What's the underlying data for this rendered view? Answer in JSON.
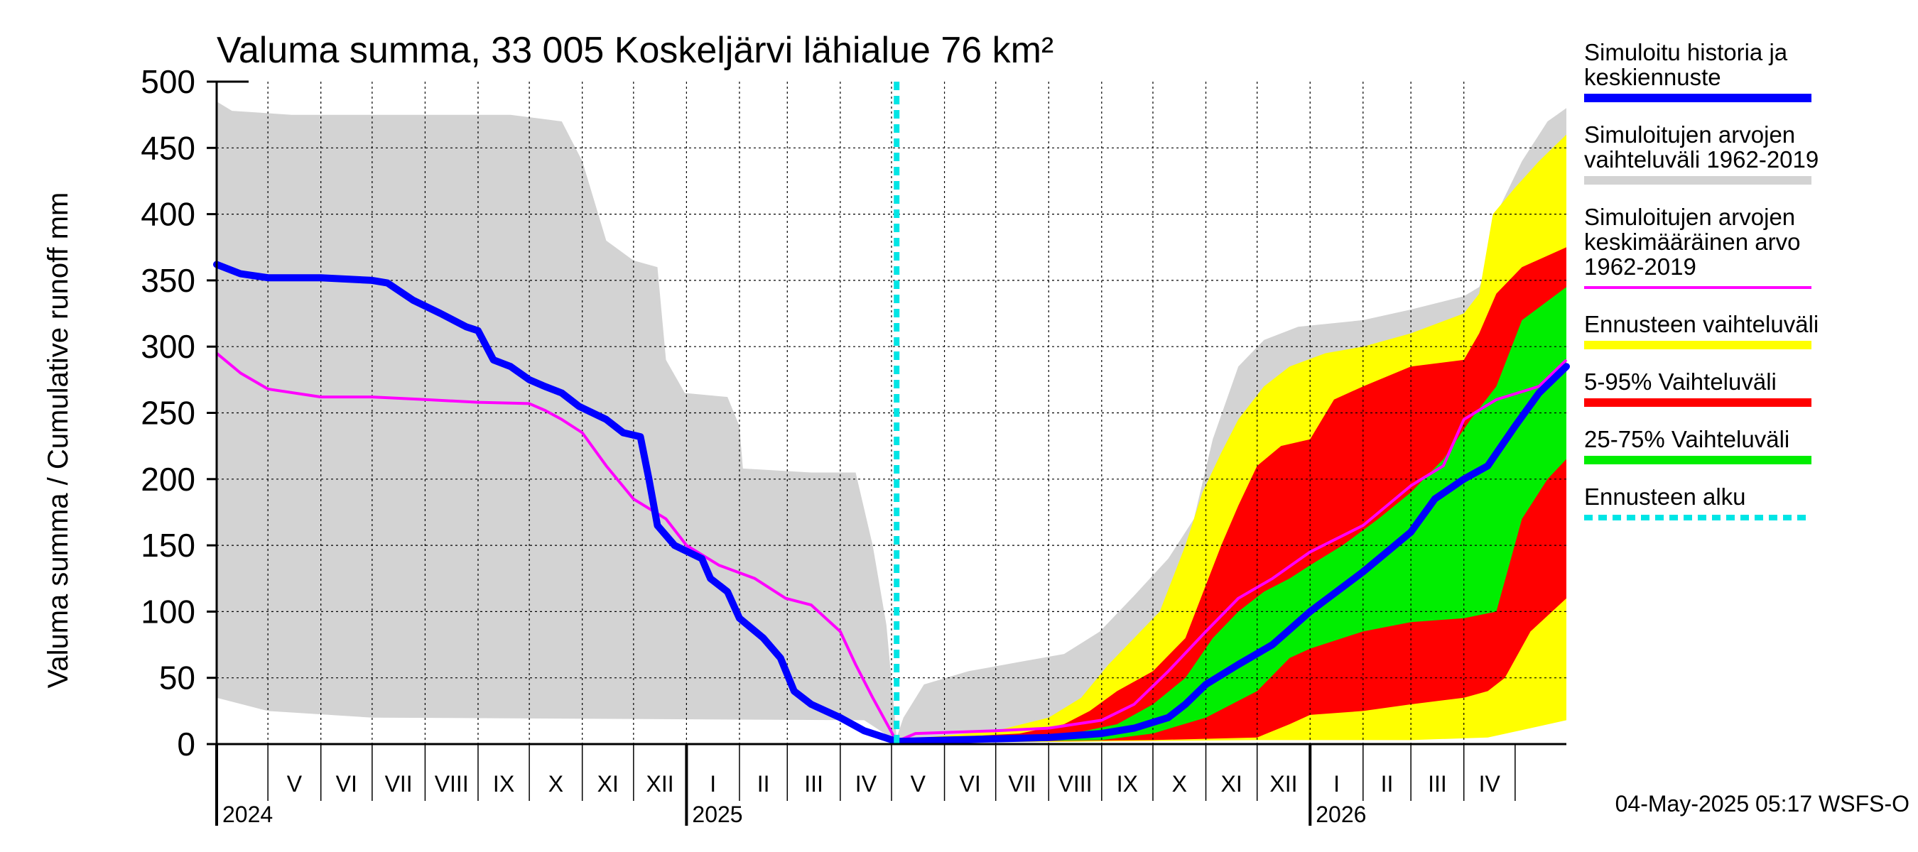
{
  "chart_data": {
    "type": "area",
    "title": "Valuma summa, 33 005 Koskeljärvi lähialue 76 km²",
    "ylabel": "Valuma summa / Cumulative runoff    mm",
    "ylim": [
      0,
      500
    ],
    "yticks": [
      0,
      50,
      100,
      150,
      200,
      250,
      300,
      350,
      400,
      450,
      500
    ],
    "xlim": [
      "2024-04-01",
      "2026-05-31"
    ],
    "forecast_start": "2025-05-04",
    "months": [
      {
        "label": "V",
        "start": "2024-05-01",
        "end": "2024-06-01"
      },
      {
        "label": "VI",
        "start": "2024-06-01",
        "end": "2024-07-01"
      },
      {
        "label": "VII",
        "start": "2024-07-01",
        "end": "2024-08-01"
      },
      {
        "label": "VIII",
        "start": "2024-08-01",
        "end": "2024-09-01"
      },
      {
        "label": "IX",
        "start": "2024-09-01",
        "end": "2024-10-01"
      },
      {
        "label": "X",
        "start": "2024-10-01",
        "end": "2024-11-01"
      },
      {
        "label": "XI",
        "start": "2024-11-01",
        "end": "2024-12-01"
      },
      {
        "label": "XII",
        "start": "2024-12-01",
        "end": "2025-01-01"
      },
      {
        "label": "I",
        "start": "2025-01-01",
        "end": "2025-02-01"
      },
      {
        "label": "II",
        "start": "2025-02-01",
        "end": "2025-03-01"
      },
      {
        "label": "III",
        "start": "2025-03-01",
        "end": "2025-04-01"
      },
      {
        "label": "IV",
        "start": "2025-04-01",
        "end": "2025-05-01"
      },
      {
        "label": "V",
        "start": "2025-05-01",
        "end": "2025-06-01"
      },
      {
        "label": "VI",
        "start": "2025-06-01",
        "end": "2025-07-01"
      },
      {
        "label": "VII",
        "start": "2025-07-01",
        "end": "2025-08-01"
      },
      {
        "label": "VIII",
        "start": "2025-08-01",
        "end": "2025-09-01"
      },
      {
        "label": "IX",
        "start": "2025-09-01",
        "end": "2025-10-01"
      },
      {
        "label": "X",
        "start": "2025-10-01",
        "end": "2025-11-01"
      },
      {
        "label": "XI",
        "start": "2025-11-01",
        "end": "2025-12-01"
      },
      {
        "label": "XII",
        "start": "2025-12-01",
        "end": "2026-01-01"
      },
      {
        "label": "I",
        "start": "2026-01-01",
        "end": "2026-02-01"
      },
      {
        "label": "II",
        "start": "2026-02-01",
        "end": "2026-03-01"
      },
      {
        "label": "III",
        "start": "2026-03-01",
        "end": "2026-04-01"
      },
      {
        "label": "IV",
        "start": "2026-04-01",
        "end": "2026-05-01"
      }
    ],
    "years": [
      {
        "label": "2024",
        "date": "2024-04-01"
      },
      {
        "label": "2025",
        "date": "2025-01-01"
      },
      {
        "label": "2026",
        "date": "2026-01-01"
      }
    ],
    "hist_range": {
      "name": "Simuloitujen arvojen vaihteluväli 1962-2019",
      "color": "#d3d3d3",
      "upper": [
        [
          "2024-04-01",
          485
        ],
        [
          "2024-04-10",
          478
        ],
        [
          "2024-05-15",
          475
        ],
        [
          "2024-09-20",
          475
        ],
        [
          "2024-10-20",
          470
        ],
        [
          "2024-11-01",
          440
        ],
        [
          "2024-11-15",
          380
        ],
        [
          "2024-12-01",
          365
        ],
        [
          "2024-12-15",
          360
        ],
        [
          "2024-12-20",
          290
        ],
        [
          "2024-12-31",
          265
        ],
        [
          "2025-01-25",
          262
        ],
        [
          "2025-02-01",
          240
        ],
        [
          "2025-02-03",
          208
        ],
        [
          "2025-03-15",
          205
        ],
        [
          "2025-04-10",
          205
        ],
        [
          "2025-04-20",
          150
        ],
        [
          "2025-04-28",
          90
        ],
        [
          "2025-05-04",
          5
        ],
        [
          "2025-05-08",
          20
        ],
        [
          "2025-05-20",
          45
        ],
        [
          "2025-06-15",
          55
        ],
        [
          "2025-07-15",
          62
        ],
        [
          "2025-08-10",
          68
        ],
        [
          "2025-08-31",
          85
        ],
        [
          "2025-09-20",
          112
        ],
        [
          "2025-10-10",
          140
        ],
        [
          "2025-10-25",
          170
        ],
        [
          "2025-11-05",
          230
        ],
        [
          "2025-11-20",
          285
        ],
        [
          "2025-12-05",
          305
        ],
        [
          "2025-12-25",
          315
        ],
        [
          "2026-02-01",
          320
        ],
        [
          "2026-03-01",
          328
        ],
        [
          "2026-04-01",
          338
        ],
        [
          "2026-04-10",
          345
        ],
        [
          "2026-04-15",
          360
        ],
        [
          "2026-04-20",
          400
        ],
        [
          "2026-05-05",
          440
        ],
        [
          "2026-05-20",
          470
        ],
        [
          "2026-05-31",
          480
        ]
      ],
      "lower": [
        [
          "2024-04-01",
          35
        ],
        [
          "2024-05-01",
          25
        ],
        [
          "2024-07-01",
          20
        ],
        [
          "2025-04-15",
          18
        ],
        [
          "2025-05-04",
          2
        ],
        [
          "2025-07-01",
          1
        ],
        [
          "2025-09-01",
          2
        ],
        [
          "2025-12-01",
          5
        ],
        [
          "2026-02-01",
          8
        ],
        [
          "2026-04-10",
          10
        ],
        [
          "2026-05-10",
          15
        ],
        [
          "2026-05-31",
          25
        ]
      ]
    },
    "fc_range": {
      "name": "Ennusteen vaihteluväli",
      "color": "#ffff00",
      "upper": [
        [
          "2025-05-04",
          3
        ],
        [
          "2025-07-01",
          10
        ],
        [
          "2025-08-01",
          20
        ],
        [
          "2025-08-20",
          35
        ],
        [
          "2025-09-05",
          60
        ],
        [
          "2025-09-20",
          80
        ],
        [
          "2025-10-05",
          100
        ],
        [
          "2025-10-20",
          150
        ],
        [
          "2025-10-30",
          190
        ],
        [
          "2025-11-10",
          220
        ],
        [
          "2025-11-20",
          245
        ],
        [
          "2025-12-05",
          270
        ],
        [
          "2025-12-20",
          285
        ],
        [
          "2026-01-10",
          295
        ],
        [
          "2026-02-01",
          300
        ],
        [
          "2026-03-01",
          310
        ],
        [
          "2026-04-01",
          325
        ],
        [
          "2026-04-10",
          340
        ],
        [
          "2026-04-18",
          400
        ],
        [
          "2026-05-01",
          420
        ],
        [
          "2026-05-15",
          440
        ],
        [
          "2026-05-31",
          460
        ]
      ],
      "lower": [
        [
          "2025-05-04",
          1
        ],
        [
          "2025-09-01",
          2
        ],
        [
          "2025-12-01",
          3
        ],
        [
          "2026-03-01",
          3
        ],
        [
          "2026-04-15",
          5
        ],
        [
          "2026-05-10",
          12
        ],
        [
          "2026-05-31",
          18
        ]
      ]
    },
    "p5_95": {
      "name": "5-95% Vaihteluväli",
      "color": "#ff0000",
      "upper": [
        [
          "2025-05-04",
          3
        ],
        [
          "2025-07-15",
          8
        ],
        [
          "2025-08-10",
          15
        ],
        [
          "2025-08-25",
          25
        ],
        [
          "2025-09-10",
          40
        ],
        [
          "2025-10-01",
          55
        ],
        [
          "2025-10-20",
          80
        ],
        [
          "2025-11-01",
          120
        ],
        [
          "2025-11-10",
          150
        ],
        [
          "2025-11-20",
          180
        ],
        [
          "2025-12-01",
          210
        ],
        [
          "2025-12-15",
          225
        ],
        [
          "2026-01-01",
          230
        ],
        [
          "2026-01-15",
          260
        ],
        [
          "2026-02-01",
          270
        ],
        [
          "2026-03-01",
          285
        ],
        [
          "2026-04-01",
          290
        ],
        [
          "2026-04-10",
          310
        ],
        [
          "2026-04-20",
          340
        ],
        [
          "2026-05-05",
          360
        ],
        [
          "2026-05-31",
          375
        ]
      ],
      "lower": [
        [
          "2025-05-04",
          1
        ],
        [
          "2025-10-01",
          3
        ],
        [
          "2025-12-01",
          5
        ],
        [
          "2025-12-20",
          15
        ],
        [
          "2026-01-01",
          22
        ],
        [
          "2026-02-01",
          25
        ],
        [
          "2026-03-01",
          30
        ],
        [
          "2026-04-01",
          35
        ],
        [
          "2026-04-15",
          40
        ],
        [
          "2026-04-25",
          50
        ],
        [
          "2026-05-10",
          85
        ],
        [
          "2026-05-31",
          110
        ]
      ]
    },
    "p25_75": {
      "name": "25-75% Vaihteluväli",
      "color": "#00ee00",
      "upper": [
        [
          "2025-05-04",
          3
        ],
        [
          "2025-08-15",
          8
        ],
        [
          "2025-09-10",
          15
        ],
        [
          "2025-10-01",
          30
        ],
        [
          "2025-10-20",
          50
        ],
        [
          "2025-11-05",
          80
        ],
        [
          "2025-11-20",
          100
        ],
        [
          "2025-12-05",
          115
        ],
        [
          "2025-12-20",
          125
        ],
        [
          "2026-01-01",
          135
        ],
        [
          "2026-01-20",
          150
        ],
        [
          "2026-02-10",
          170
        ],
        [
          "2026-03-01",
          190
        ],
        [
          "2026-03-20",
          215
        ],
        [
          "2026-04-05",
          245
        ],
        [
          "2026-04-20",
          270
        ],
        [
          "2026-05-05",
          320
        ],
        [
          "2026-05-31",
          345
        ]
      ],
      "lower": [
        [
          "2025-05-04",
          1
        ],
        [
          "2025-09-01",
          3
        ],
        [
          "2025-10-01",
          8
        ],
        [
          "2025-11-01",
          20
        ],
        [
          "2025-12-01",
          40
        ],
        [
          "2025-12-20",
          65
        ],
        [
          "2026-01-01",
          72
        ],
        [
          "2026-02-01",
          85
        ],
        [
          "2026-03-01",
          92
        ],
        [
          "2026-04-01",
          95
        ],
        [
          "2026-04-20",
          100
        ],
        [
          "2026-05-05",
          170
        ],
        [
          "2026-05-20",
          200
        ],
        [
          "2026-05-31",
          215
        ]
      ]
    },
    "mean_line": {
      "name": "Simuloitujen arvojen keskimääräinen arvo 1962-2019",
      "color": "#ff00ff",
      "points": [
        [
          "2024-04-01",
          295
        ],
        [
          "2024-04-15",
          280
        ],
        [
          "2024-05-01",
          268
        ],
        [
          "2024-06-01",
          262
        ],
        [
          "2024-07-01",
          262
        ],
        [
          "2024-08-01",
          260
        ],
        [
          "2024-09-01",
          258
        ],
        [
          "2024-10-01",
          257
        ],
        [
          "2024-10-10",
          252
        ],
        [
          "2024-10-20",
          245
        ],
        [
          "2024-11-01",
          235
        ],
        [
          "2024-11-15",
          210
        ],
        [
          "2024-12-01",
          185
        ],
        [
          "2024-12-20",
          170
        ],
        [
          "2025-01-01",
          150
        ],
        [
          "2025-01-20",
          135
        ],
        [
          "2025-02-10",
          125
        ],
        [
          "2025-02-28",
          110
        ],
        [
          "2025-03-15",
          105
        ],
        [
          "2025-04-01",
          85
        ],
        [
          "2025-04-10",
          60
        ],
        [
          "2025-04-20",
          35
        ],
        [
          "2025-05-04",
          2
        ],
        [
          "2025-05-15",
          8
        ],
        [
          "2025-07-01",
          10
        ],
        [
          "2025-08-01",
          12
        ],
        [
          "2025-09-01",
          18
        ],
        [
          "2025-09-20",
          30
        ],
        [
          "2025-10-10",
          55
        ],
        [
          "2025-11-01",
          85
        ],
        [
          "2025-11-20",
          110
        ],
        [
          "2025-12-10",
          125
        ],
        [
          "2026-01-01",
          145
        ],
        [
          "2026-02-01",
          165
        ],
        [
          "2026-03-01",
          195
        ],
        [
          "2026-03-20",
          210
        ],
        [
          "2026-04-01",
          245
        ],
        [
          "2026-04-20",
          260
        ],
        [
          "2026-05-15",
          270
        ],
        [
          "2026-05-31",
          290
        ]
      ]
    },
    "sim_line": {
      "name": "Simuloitu historia ja keskiennuste",
      "color": "#0000ff",
      "points": [
        [
          "2024-04-01",
          362
        ],
        [
          "2024-04-15",
          355
        ],
        [
          "2024-05-01",
          352
        ],
        [
          "2024-06-01",
          352
        ],
        [
          "2024-07-01",
          350
        ],
        [
          "2024-07-10",
          348
        ],
        [
          "2024-07-25",
          335
        ],
        [
          "2024-08-10",
          325
        ],
        [
          "2024-08-25",
          315
        ],
        [
          "2024-09-01",
          312
        ],
        [
          "2024-09-10",
          290
        ],
        [
          "2024-09-20",
          285
        ],
        [
          "2024-10-01",
          275
        ],
        [
          "2024-10-10",
          270
        ],
        [
          "2024-10-20",
          265
        ],
        [
          "2024-10-30",
          255
        ],
        [
          "2024-11-15",
          245
        ],
        [
          "2024-11-25",
          235
        ],
        [
          "2024-12-05",
          232
        ],
        [
          "2024-12-10",
          200
        ],
        [
          "2024-12-15",
          165
        ],
        [
          "2024-12-25",
          150
        ],
        [
          "2025-01-10",
          140
        ],
        [
          "2025-01-15",
          125
        ],
        [
          "2025-01-25",
          115
        ],
        [
          "2025-02-01",
          95
        ],
        [
          "2025-02-15",
          80
        ],
        [
          "2025-02-25",
          65
        ],
        [
          "2025-03-05",
          40
        ],
        [
          "2025-03-15",
          30
        ],
        [
          "2025-04-01",
          20
        ],
        [
          "2025-04-15",
          10
        ],
        [
          "2025-05-04",
          2
        ],
        [
          "2025-06-01",
          3
        ],
        [
          "2025-08-01",
          5
        ],
        [
          "2025-09-01",
          8
        ],
        [
          "2025-09-20",
          12
        ],
        [
          "2025-10-10",
          20
        ],
        [
          "2025-10-20",
          30
        ],
        [
          "2025-11-01",
          45
        ],
        [
          "2025-11-20",
          60
        ],
        [
          "2025-12-10",
          75
        ],
        [
          "2026-01-01",
          100
        ],
        [
          "2026-02-01",
          130
        ],
        [
          "2026-03-01",
          160
        ],
        [
          "2026-03-15",
          185
        ],
        [
          "2026-04-01",
          200
        ],
        [
          "2026-04-15",
          210
        ],
        [
          "2026-05-01",
          240
        ],
        [
          "2026-05-15",
          265
        ],
        [
          "2026-05-31",
          285
        ]
      ]
    }
  },
  "legend": [
    {
      "lines": [
        "Simuloitu historia ja",
        "keskiennuste"
      ],
      "color": "#0000ff",
      "style": "solid"
    },
    {
      "lines": [
        "Simuloitujen arvojen",
        "vaihteluväli 1962-2019"
      ],
      "color": "#d3d3d3",
      "style": "solid"
    },
    {
      "lines": [
        "Simuloitujen arvojen",
        "keskimääräinen arvo",
        "   1962-2019"
      ],
      "color": "#ff00ff",
      "style": "thin"
    },
    {
      "lines": [
        "Ennusteen vaihteluväli"
      ],
      "color": "#ffff00",
      "style": "solid"
    },
    {
      "lines": [
        "5-95% Vaihteluväli"
      ],
      "color": "#ff0000",
      "style": "solid"
    },
    {
      "lines": [
        "25-75% Vaihteluväli"
      ],
      "color": "#00ee00",
      "style": "solid"
    },
    {
      "lines": [
        "Ennusteen alku"
      ],
      "color": "#00e5e5",
      "style": "dashed"
    }
  ],
  "timestamp": "04-May-2025 05:17 WSFS-O"
}
